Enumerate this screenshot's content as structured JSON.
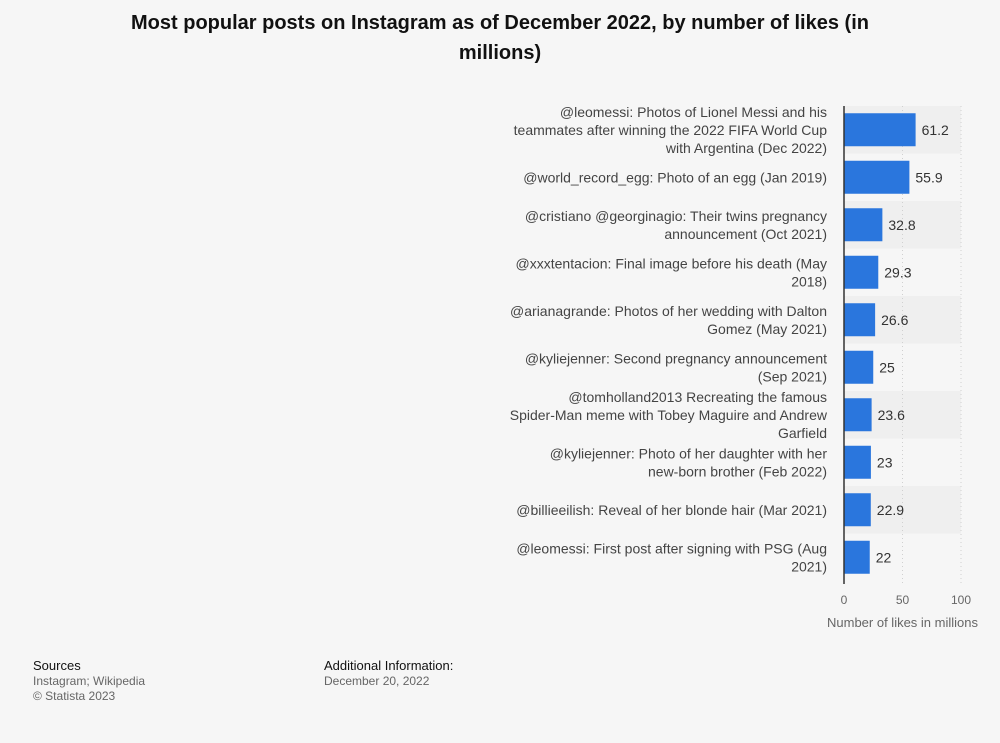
{
  "chart_data": {
    "type": "bar",
    "orientation": "horizontal",
    "title": "Most popular posts on Instagram as of December 2022, by number of likes (in millions)",
    "xlabel": "Number of likes in millions",
    "xlim": [
      0,
      100
    ],
    "x_ticks": [
      0,
      50,
      100
    ],
    "grid": true,
    "bar_color": "#2a76dd",
    "categories": [
      "@leomessi: Photos of Lionel Messi and his teammates after winning the 2022 FIFA World Cup with Argentina (Dec 2022)",
      "@world_record_egg: Photo of an egg (Jan 2019)",
      "@cristiano @georginagio: Their twins pregnancy announcement (Oct 2021)",
      "@xxxtentacion: Final image before his death (May 2018)",
      "@arianagrande: Photos of her wedding with Dalton Gomez (May 2021)",
      "@kyliejenner: Second pregnancy announcement (Sep 2021)",
      "@tomholland2013 Recreating the famous Spider-Man meme with Tobey Maguire and Andrew Garfield",
      "@kyliejenner: Photo of her daughter with her new-born brother (Feb 2022)",
      "@billieeilish: Reveal of her blonde hair (Mar 2021)",
      "@leomessi: First post after signing with PSG (Aug 2021)"
    ],
    "values": [
      61.2,
      55.9,
      32.8,
      29.3,
      26.6,
      25,
      23.6,
      23,
      22.9,
      22
    ],
    "value_labels": [
      "61.2",
      "55.9",
      "32.8",
      "29.3",
      "26.6",
      "25",
      "23.6",
      "23",
      "22.9",
      "22"
    ]
  },
  "footer": {
    "sources_heading": "Sources",
    "sources_text": "Instagram; Wikipedia",
    "copyright": "© Statista 2023",
    "additional_heading": "Additional Information:",
    "additional_text": "December 20, 2022"
  }
}
